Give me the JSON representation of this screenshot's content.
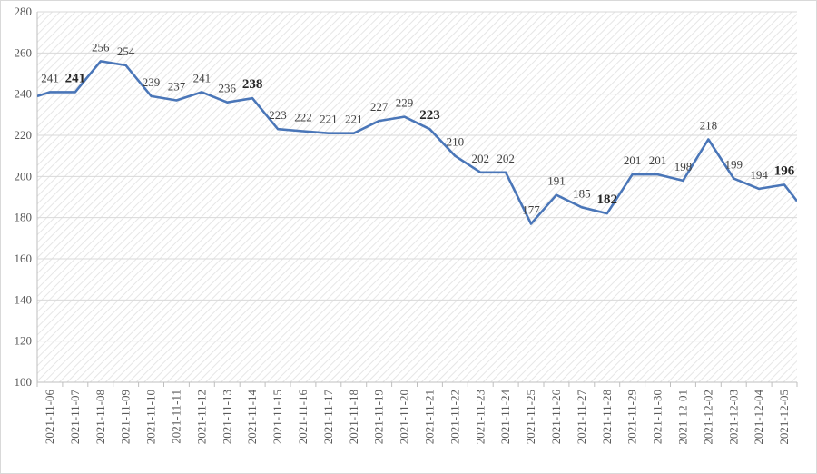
{
  "chart_data": {
    "type": "line",
    "title": "",
    "xlabel": "",
    "ylabel": "",
    "ylim": [
      100,
      280
    ],
    "yticks": [
      100,
      120,
      140,
      160,
      180,
      200,
      220,
      240,
      260,
      280
    ],
    "grid": true,
    "line_color": "#4a76b8",
    "bold_labels": [
      "2021-11-07",
      "2021-11-14",
      "2021-11-21",
      "2021-11-28",
      "2021-12-05"
    ],
    "categories": [
      "2021-11-06",
      "2021-11-07",
      "2021-11-08",
      "2021-11-09",
      "2021-11-10",
      "2021-11-11",
      "2021-11-12",
      "2021-11-13",
      "2021-11-14",
      "2021-11-15",
      "2021-11-16",
      "2021-11-17",
      "2021-11-18",
      "2021-11-19",
      "2021-11-20",
      "2021-11-21",
      "2021-11-22",
      "2021-11-23",
      "2021-11-24",
      "2021-11-25",
      "2021-11-26",
      "2021-11-27",
      "2021-11-28",
      "2021-11-29",
      "2021-11-30",
      "2021-12-01",
      "2021-12-02",
      "2021-12-03",
      "2021-12-04",
      "2021-12-05"
    ],
    "values": [
      241,
      241,
      256,
      254,
      239,
      237,
      241,
      236,
      238,
      223,
      222,
      221,
      221,
      227,
      229,
      223,
      210,
      202,
      202,
      177,
      191,
      185,
      182,
      201,
      201,
      198,
      218,
      199,
      194,
      196
    ],
    "edge_left_value": 239,
    "edge_right_value": 188
  }
}
